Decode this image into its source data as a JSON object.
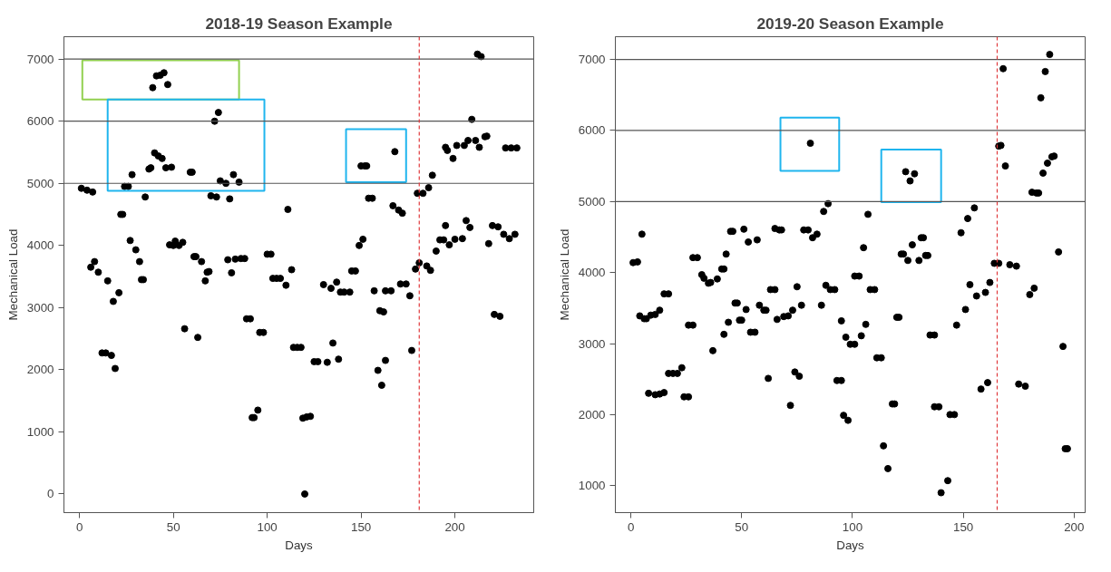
{
  "chart_data": [
    {
      "type": "scatter",
      "title": "2018-19 Season Example",
      "xlabel": "Days",
      "ylabel": "Mechanical Load",
      "xlim": [
        -8.3,
        242
      ],
      "ylim": [
        -300,
        7360
      ],
      "xticks": [
        0,
        50,
        100,
        150,
        200
      ],
      "yticks": [
        0,
        1000,
        2000,
        3000,
        4000,
        5000,
        6000,
        7000
      ],
      "grid": false,
      "marker": "circle",
      "ref_lines": [
        {
          "axis": "y",
          "value": 5000,
          "label": null,
          "color": "#555555",
          "line_style": "solid"
        },
        {
          "axis": "y",
          "value": 6000,
          "label": null,
          "color": "#555555",
          "line_style": "solid"
        },
        {
          "axis": "y",
          "value": 7000,
          "label": null,
          "color": "#555555",
          "line_style": "solid"
        },
        {
          "axis": "x",
          "value": 181,
          "label": null,
          "color": "#e0383b",
          "line_style": "dashed"
        }
      ],
      "series": [
        {
          "type": "scatter",
          "color": "#000000",
          "x": [
            1,
            4,
            7,
            6,
            8,
            10,
            15,
            21,
            18,
            12,
            14,
            17,
            19,
            22,
            23,
            24,
            26,
            28,
            27,
            30,
            32,
            33,
            34,
            35,
            37,
            38,
            39,
            41,
            43,
            45,
            47,
            40,
            42,
            44,
            46,
            49,
            48,
            50,
            51,
            53,
            55,
            59,
            60,
            56,
            63,
            61,
            62,
            65,
            68,
            69,
            67,
            72,
            74,
            70,
            73,
            75,
            78,
            82,
            85,
            80,
            79,
            81,
            83,
            86,
            88,
            89,
            91,
            92,
            93,
            95,
            96,
            98,
            100,
            102,
            111,
            103,
            105,
            107,
            113,
            110,
            114,
            116,
            118,
            119,
            121,
            123,
            120,
            125,
            127,
            132,
            135,
            138,
            130,
            134,
            137,
            139,
            141,
            144,
            145,
            147,
            149,
            151,
            154,
            156,
            150,
            152,
            153,
            168,
            167,
            170,
            172,
            157,
            163,
            166,
            160,
            162,
            159,
            163,
            161,
            171,
            174,
            176,
            177,
            179,
            181,
            185,
            187,
            180,
            183,
            186,
            188,
            190,
            192,
            194,
            197,
            195,
            200,
            204,
            206,
            208,
            218,
            220,
            223,
            226,
            229,
            232,
            221,
            224,
            195,
            196,
            199,
            201,
            205,
            207,
            211,
            213,
            216,
            217,
            209,
            212,
            214,
            227,
            230,
            233
          ],
          "values": [
            4920,
            4890,
            4860,
            3650,
            3740,
            3570,
            3430,
            3240,
            3100,
            2270,
            2270,
            2230,
            2020,
            4500,
            4500,
            4950,
            4950,
            5140,
            4080,
            3930,
            3740,
            3450,
            3450,
            4780,
            5230,
            5250,
            6540,
            6730,
            6740,
            6780,
            6590,
            5490,
            5440,
            5400,
            5250,
            5260,
            4010,
            4000,
            4070,
            4000,
            4050,
            5180,
            5180,
            2660,
            2520,
            3820,
            3820,
            3740,
            3570,
            3580,
            3430,
            6000,
            6140,
            4800,
            4780,
            5040,
            5000,
            5140,
            5020,
            4750,
            3770,
            3560,
            3780,
            3790,
            3790,
            2820,
            2820,
            1230,
            1230,
            1350,
            2600,
            2600,
            3860,
            3860,
            4580,
            3470,
            3470,
            3470,
            3610,
            3360,
            2360,
            2360,
            2360,
            1220,
            1240,
            1250,
            0,
            2130,
            2130,
            2120,
            2430,
            2170,
            3370,
            3310,
            3410,
            3250,
            3250,
            3250,
            3590,
            3590,
            4000,
            4100,
            4760,
            4760,
            5280,
            5280,
            5280,
            5510,
            4640,
            4570,
            4520,
            3270,
            3270,
            3270,
            2950,
            2930,
            1990,
            2150,
            1750,
            3380,
            3380,
            3190,
            2310,
            3620,
            3720,
            3670,
            3600,
            4840,
            4840,
            4930,
            5130,
            3910,
            4090,
            4090,
            4010,
            4320,
            4100,
            4110,
            4400,
            4290,
            4030,
            4320,
            4300,
            4180,
            4110,
            4180,
            2890,
            2860,
            5580,
            5530,
            5400,
            5610,
            5610,
            5690,
            5690,
            5580,
            5750,
            5760,
            6030,
            7080,
            7040,
            5570,
            5570,
            5570
          ]
        }
      ]
    },
    {
      "type": "scatter",
      "title": "2019-20 Season Example",
      "xlabel": "Days",
      "ylabel": "Mechanical Load",
      "xlim": [
        -7,
        205
      ],
      "ylim": [
        620,
        7320
      ],
      "xticks": [
        0,
        50,
        100,
        150,
        200
      ],
      "yticks": [
        1000,
        2000,
        3000,
        4000,
        5000,
        6000,
        7000
      ],
      "grid": false,
      "marker": "circle",
      "ref_lines": [
        {
          "axis": "y",
          "value": 5000,
          "label": null,
          "color": "#555555",
          "line_style": "solid"
        },
        {
          "axis": "y",
          "value": 6000,
          "label": null,
          "color": "#555555",
          "line_style": "solid"
        },
        {
          "axis": "y",
          "value": 7000,
          "label": null,
          "color": "#555555",
          "line_style": "solid"
        },
        {
          "axis": "x",
          "value": 165.3,
          "label": null,
          "color": "#e0383b",
          "line_style": "dashed"
        }
      ],
      "series": [
        {
          "type": "scatter",
          "color": "#000000",
          "x": [
            1,
            3,
            5,
            4,
            6,
            7,
            9,
            11,
            13,
            15,
            17,
            8,
            11,
            13,
            15,
            17,
            19,
            21,
            23,
            24,
            26,
            26,
            28,
            28,
            30,
            32,
            33,
            35,
            36,
            37,
            39,
            41,
            42,
            42,
            44,
            43,
            45,
            46,
            47,
            48,
            49,
            50,
            51,
            52,
            53,
            54,
            56,
            57,
            58,
            60,
            61,
            62,
            63,
            65,
            65,
            67,
            68,
            66,
            69,
            71,
            72,
            73,
            74,
            76,
            75,
            77,
            78,
            80,
            82,
            84,
            81,
            86,
            87,
            89,
            88,
            90,
            92,
            93,
            95,
            95,
            97,
            99,
            101,
            104,
            96,
            98,
            106,
            105,
            107,
            101,
            103,
            108,
            110,
            111,
            113,
            114,
            116,
            118,
            119,
            120,
            121,
            122,
            123,
            125,
            127,
            130,
            131,
            132,
            133,
            134,
            124,
            128,
            126,
            135,
            137,
            137,
            139,
            144,
            146,
            140,
            143,
            147,
            151,
            153,
            156,
            160,
            162,
            149,
            152,
            155,
            158,
            161,
            164,
            166,
            166,
            167,
            169,
            168,
            171,
            174,
            175,
            178,
            180,
            182,
            181,
            183,
            184,
            186,
            188,
            190,
            191,
            185,
            187,
            189,
            193,
            195,
            196,
            197
          ],
          "values": [
            4140,
            4150,
            4540,
            3390,
            3350,
            3350,
            3400,
            3410,
            3470,
            3700,
            3700,
            2300,
            2280,
            2290,
            2310,
            2580,
            2580,
            2580,
            2660,
            2250,
            2250,
            3260,
            3260,
            4210,
            4210,
            3970,
            3920,
            3850,
            3860,
            2900,
            3910,
            4050,
            4050,
            3130,
            3300,
            4260,
            4580,
            4580,
            3570,
            3570,
            3330,
            3330,
            4610,
            3480,
            4430,
            3160,
            3160,
            4460,
            3540,
            3470,
            3470,
            2510,
            3760,
            3760,
            4620,
            4600,
            4600,
            3340,
            3380,
            3390,
            2130,
            3470,
            2600,
            2540,
            3800,
            3540,
            4600,
            4600,
            4490,
            4540,
            5820,
            3540,
            4860,
            4970,
            3820,
            3760,
            3760,
            2480,
            2480,
            3320,
            3090,
            2990,
            2990,
            3110,
            1990,
            1920,
            3270,
            4350,
            4820,
            3950,
            3950,
            3760,
            3760,
            2800,
            2800,
            1560,
            1240,
            2150,
            2150,
            3370,
            3370,
            4260,
            4260,
            4170,
            4390,
            4170,
            4490,
            4490,
            4240,
            4240,
            5420,
            5390,
            5290,
            3120,
            3120,
            2110,
            2110,
            2000,
            2000,
            900,
            1070,
            3260,
            3480,
            3830,
            3670,
            3720,
            3860,
            4560,
            4760,
            4910,
            2360,
            2450,
            4130,
            4130,
            5780,
            5790,
            5500,
            6870,
            4110,
            4090,
            2430,
            2400,
            3690,
            3780,
            5130,
            5120,
            5120,
            5400,
            5540,
            5630,
            5640,
            6460,
            6830,
            7070,
            4290,
            2960,
            1520,
            1520
          ]
        }
      ]
    }
  ]
}
